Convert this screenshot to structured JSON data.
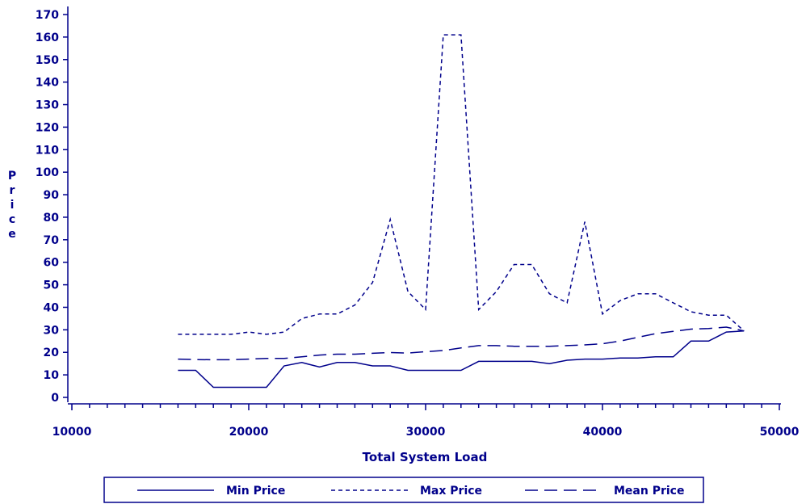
{
  "chart_data": {
    "type": "line",
    "title": "",
    "xlabel": "Total System Load",
    "ylabel": "Price",
    "xlim": [
      10000,
      50000
    ],
    "ylim": [
      0,
      170
    ],
    "x_ticks": [
      10000,
      20000,
      30000,
      40000,
      50000
    ],
    "y_ticks": [
      0,
      10,
      20,
      30,
      40,
      50,
      60,
      70,
      80,
      90,
      100,
      110,
      120,
      130,
      140,
      150,
      160,
      170
    ],
    "grid": false,
    "legend_position": "bottom",
    "x": [
      16000,
      17000,
      18000,
      19000,
      20000,
      21000,
      22000,
      23000,
      24000,
      25000,
      26000,
      27000,
      28000,
      29000,
      30000,
      31000,
      32000,
      33000,
      34000,
      35000,
      36000,
      37000,
      38000,
      39000,
      40000,
      41000,
      42000,
      43000,
      44000,
      45000,
      46000,
      47000,
      48000
    ],
    "series": [
      {
        "name": "Min Price",
        "style": "solid",
        "values": [
          12,
          12,
          4.5,
          4.5,
          4.5,
          4.5,
          14,
          15.5,
          13.5,
          15.5,
          15.5,
          14,
          14,
          12,
          12,
          12,
          12,
          16,
          16,
          16,
          16,
          15,
          16.5,
          17,
          17,
          17.5,
          17.5,
          18,
          18,
          25,
          25,
          29,
          29.5
        ]
      },
      {
        "name": "Max Price",
        "style": "dashed",
        "values": [
          28,
          28,
          28,
          28,
          29,
          28,
          29,
          35,
          37,
          37,
          41,
          51,
          79,
          47,
          39,
          161,
          161,
          39,
          47,
          59,
          59,
          46,
          42,
          78,
          37,
          43,
          46,
          46,
          42,
          38,
          36.5,
          36.5,
          29.5
        ]
      },
      {
        "name": "Mean Price",
        "style": "longdash",
        "values": [
          17,
          16.8,
          16.7,
          16.7,
          17,
          17.3,
          17.3,
          18,
          18.8,
          19.2,
          19.2,
          19.6,
          19.9,
          19.7,
          20.3,
          20.8,
          22,
          23,
          23,
          22.7,
          22.7,
          22.7,
          23,
          23.3,
          23.8,
          25,
          26.7,
          28.3,
          29.3,
          30.3,
          30.6,
          31.2,
          29.5
        ]
      }
    ],
    "color": "#00008b"
  }
}
